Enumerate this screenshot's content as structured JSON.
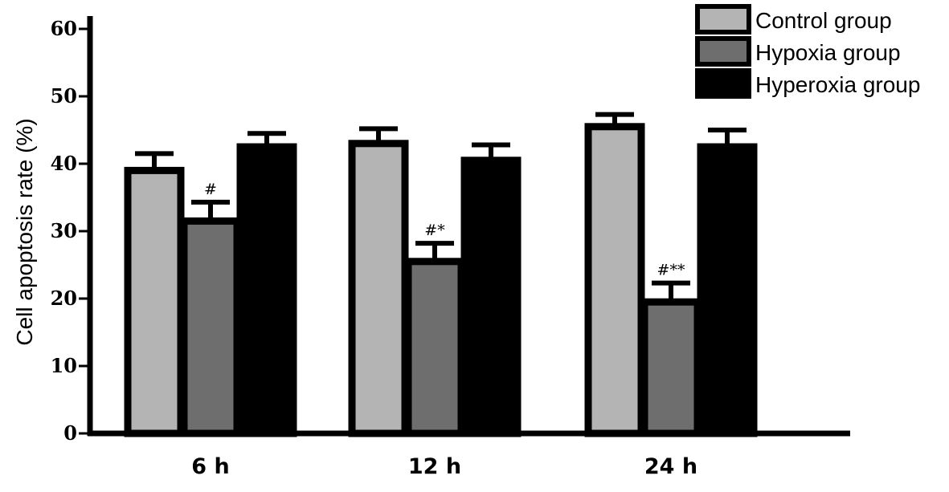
{
  "chart_data": {
    "type": "bar",
    "title": "",
    "xlabel": "",
    "ylabel": "Cell apoptosis rate (%)",
    "ylim": [
      0,
      60
    ],
    "yticks": [
      0,
      10,
      20,
      30,
      40,
      50,
      60
    ],
    "categories": [
      "6 h",
      "12 h",
      "24 h"
    ],
    "series": [
      {
        "name": "Control group",
        "color": "#b4b4b4",
        "values": [
          39,
          43,
          45.5
        ],
        "errors": [
          2.5,
          2.2,
          1.8
        ]
      },
      {
        "name": "Hypoxia group",
        "color": "#6e6e6e",
        "values": [
          31.5,
          25.5,
          19.5
        ],
        "errors": [
          2.8,
          2.7,
          2.8
        ]
      },
      {
        "name": "Hyperoxia group",
        "color": "#000000",
        "values": [
          42.5,
          40.5,
          42.5
        ],
        "errors": [
          2.0,
          2.3,
          2.5
        ]
      }
    ],
    "annotations": [
      {
        "category": "6 h",
        "series": "Hypoxia group",
        "text": "#"
      },
      {
        "category": "12 h",
        "series": "Hypoxia group",
        "text": "#*"
      },
      {
        "category": "24 h",
        "series": "Hypoxia group",
        "text": "#**"
      }
    ],
    "legend_position": "top-right",
    "grid": false
  }
}
